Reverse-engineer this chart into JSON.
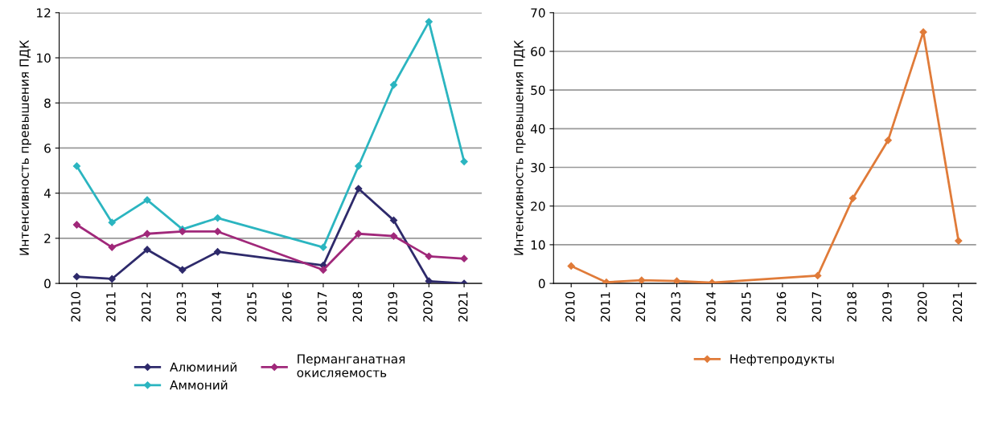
{
  "chart_data": [
    {
      "type": "line",
      "ylabel": "Интенсивность превышения ПДК",
      "categories": [
        "2010",
        "2011",
        "2012",
        "2013",
        "2014",
        "2015",
        "2016",
        "2017",
        "2018",
        "2019",
        "2020",
        "2021"
      ],
      "ylim": [
        0,
        12
      ],
      "yticks": [
        0,
        2,
        4,
        6,
        8,
        10,
        12
      ],
      "grid": "y",
      "legend": "bottom",
      "marker": "diamond",
      "line_style": "solid",
      "series": [
        {
          "name": "Алюминий",
          "color": "#2e2a6b",
          "values": [
            0.3,
            0.2,
            1.5,
            0.6,
            1.4,
            null,
            null,
            0.8,
            4.2,
            2.8,
            0.1,
            0
          ]
        },
        {
          "name": "Аммоний",
          "color": "#2bb5c0",
          "values": [
            5.2,
            2.7,
            3.7,
            2.4,
            2.9,
            null,
            null,
            1.6,
            5.2,
            8.8,
            11.6,
            5.4
          ]
        },
        {
          "name": "Перманганатная\nокисляемость",
          "color": "#a0287a",
          "values": [
            2.6,
            1.6,
            2.2,
            2.3,
            2.3,
            null,
            null,
            0.6,
            2.2,
            2.1,
            1.2,
            1.1
          ]
        }
      ]
    },
    {
      "type": "line",
      "ylabel": "Интенсивность превышения ПДК",
      "categories": [
        "2010",
        "2011",
        "2012",
        "2013",
        "2014",
        "2015",
        "2016",
        "2017",
        "2018",
        "2019",
        "2020",
        "2021"
      ],
      "ylim": [
        0,
        70
      ],
      "yticks": [
        0,
        10,
        20,
        30,
        40,
        50,
        60,
        70
      ],
      "grid": "y",
      "legend": "bottom",
      "marker": "diamond",
      "line_style": "solid",
      "series": [
        {
          "name": "Нефтепродукты",
          "color": "#e07b39",
          "values": [
            4.5,
            0.3,
            0.8,
            0.6,
            0.2,
            null,
            null,
            2,
            22,
            37,
            65,
            11
          ]
        }
      ]
    }
  ]
}
